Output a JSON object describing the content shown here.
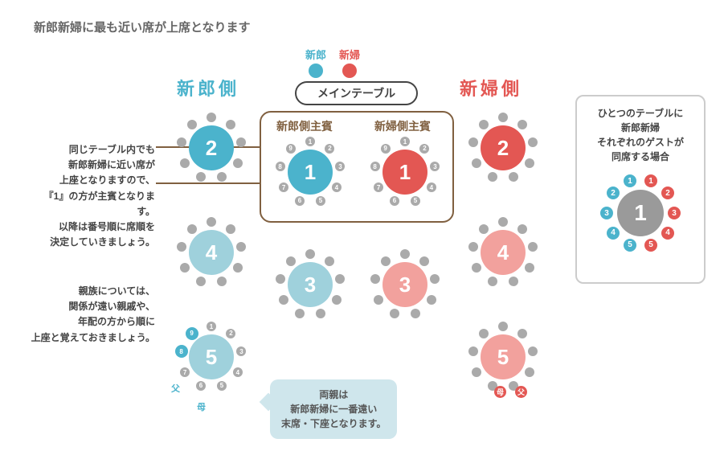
{
  "colors": {
    "groom": "#4bb3cc",
    "groom_light": "#9fd1dc",
    "bride": "#e35753",
    "bride_light": "#f2a19d",
    "gray_seat": "#aaaaaa",
    "gray_table": "#9a9a9a",
    "text_gray": "#666666",
    "brown": "#806040",
    "callout_bg": "#cfe6ec",
    "label_brown": "#806040"
  },
  "title": "新郎新婦に最も近い席が上席となります",
  "legend": {
    "groom": "新郎",
    "bride": "新婦"
  },
  "side_labels": {
    "groom": "新郎側",
    "bride": "新婦側"
  },
  "main_table_label": "メインテーブル",
  "group_labels": {
    "groom_guest": "新郎側主賓",
    "bride_guest": "新婦側主賓"
  },
  "side_text1": "同じテーブル内でも\n新郎新婦に近い席が\n上座となりますので、\n『1』の方が主賓となります。\n以降は番号順に席順を\n決定していきましょう。",
  "side_text2": "親族については、\n関係が遠い親戚や、\n年配の方から順に\n上座と覚えておきましょう。",
  "callout_text": "両親は\n新郎新婦に一番遠い\n末席・下座となります。",
  "right_panel_text": "ひとつのテーブルに\n新郎新婦\nそれぞれのゲストが\n同席する場合",
  "tables": {
    "groom_2": "2",
    "groom_1": "1",
    "groom_4": "4",
    "groom_3": "3",
    "groom_5": "5",
    "bride_1": "1",
    "bride_2": "2",
    "bride_4": "4",
    "bride_3": "3",
    "bride_5": "5",
    "mixed_1": "1"
  },
  "seat_labels": {
    "numbers": [
      "1",
      "2",
      "3",
      "4",
      "5",
      "6",
      "7",
      "8",
      "9"
    ],
    "father": "父",
    "mother": "母"
  },
  "mixed_seats": [
    "1",
    "2",
    "3",
    "4",
    "5",
    "1",
    "2",
    "3",
    "4",
    "5"
  ]
}
